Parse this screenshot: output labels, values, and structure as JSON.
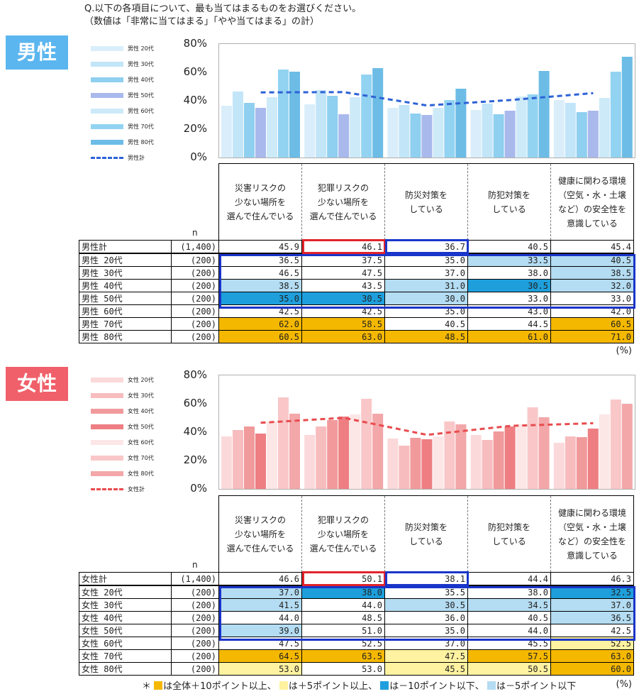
{
  "question": {
    "line1": "Q.以下の各項目について、最も当てはまるものをお選びください。",
    "line2": "（数値は「非常に当てはまる」「やや当てはまる」の計）"
  },
  "columns": [
    "災害リスクの\n少ない場所を\n選んで住んでいる",
    "犯罪リスクの\n少ない場所を\n選んで住んでいる",
    "防災対策を\nしている",
    "防犯対策を\nしている",
    "健康に関わる環境\n（空気・水・土壌\nなど）の安全性を\n意識している"
  ],
  "n_label": "n",
  "unit": "(%)",
  "colors": {
    "over10": "#f5b800",
    "over5": "#fff2a0",
    "under10": "#1e9fdc",
    "under5": "#b4dcf2",
    "male_badge": "#5bb6ef",
    "female_badge": "#f0606a"
  },
  "chart_data": [
    {
      "type": "bar",
      "title": "男性",
      "categories": [
        "災害リスクの少ない場所を選んで住んでいる",
        "犯罪リスクの少ない場所を選んで住んでいる",
        "防災対策をしている",
        "防犯対策をしている",
        "健康に関わる環境（空気・水・土壌など）の安全性を意識している"
      ],
      "ylim": [
        0,
        80
      ],
      "yticks": [
        "0%",
        "20%",
        "40%",
        "60%",
        "80%"
      ],
      "series": [
        {
          "name": "男性 20代",
          "color": "#d9eefa",
          "n": "(200)",
          "values": [
            36.5,
            37.5,
            35.0,
            33.5,
            40.5
          ]
        },
        {
          "name": "男性 30代",
          "color": "#c2e5f8",
          "n": "(200)",
          "values": [
            46.5,
            47.5,
            37.0,
            38.0,
            38.5
          ]
        },
        {
          "name": "男性 40代",
          "color": "#8fcff0",
          "n": "(200)",
          "values": [
            38.5,
            43.5,
            31.0,
            30.5,
            32.0
          ]
        },
        {
          "name": "男性 50代",
          "color": "#a9b9ec",
          "n": "(200)",
          "values": [
            35.0,
            30.5,
            30.0,
            33.0,
            33.0
          ]
        },
        {
          "name": "男性 60代",
          "color": "#cdeaf8",
          "n": "(200)",
          "values": [
            42.5,
            42.5,
            35.0,
            43.0,
            42.0
          ]
        },
        {
          "name": "男性 70代",
          "color": "#93d3f2",
          "n": "(200)",
          "values": [
            62.0,
            58.5,
            40.5,
            44.5,
            60.5
          ]
        },
        {
          "name": "男性 80代",
          "color": "#6cbce6",
          "n": "(200)",
          "values": [
            60.5,
            63.0,
            48.5,
            61.0,
            71.0
          ]
        }
      ],
      "total": {
        "name": "男性計",
        "legend_label": "男性計",
        "color": "#2d62d6",
        "n": "(1,400)",
        "values": [
          45.9,
          46.1,
          36.7,
          40.5,
          45.4
        ]
      },
      "highlights": [
        [
          "",
          "",
          "",
          "under5",
          "under5"
        ],
        [
          "",
          "",
          "",
          "",
          "under5"
        ],
        [
          "under5",
          "",
          "under5",
          "under10",
          "under5"
        ],
        [
          "under10",
          "under10",
          "under5",
          "",
          ""
        ],
        [
          "",
          "",
          "",
          "",
          ""
        ],
        [
          "over10",
          "over10",
          "",
          "",
          "over10"
        ],
        [
          "over10",
          "over10",
          "over10",
          "over10",
          "over10"
        ]
      ]
    },
    {
      "type": "bar",
      "title": "女性",
      "categories": [
        "災害リスクの少ない場所を選んで住んでいる",
        "犯罪リスクの少ない場所を選んで住んでいる",
        "防災対策をしている",
        "防犯対策をしている",
        "健康に関わる環境（空気・水・土壌など）の安全性を意識している"
      ],
      "ylim": [
        0,
        80
      ],
      "yticks": [
        "0%",
        "20%",
        "40%",
        "60%",
        "80%"
      ],
      "series": [
        {
          "name": "女性 20代",
          "color": "#fbd9da",
          "n": "(200)",
          "values": [
            37.0,
            38.0,
            35.5,
            38.0,
            32.5
          ]
        },
        {
          "name": "女性 30代",
          "color": "#f7bcbe",
          "n": "(200)",
          "values": [
            41.5,
            44.0,
            30.5,
            34.5,
            37.0
          ]
        },
        {
          "name": "女性 40代",
          "color": "#f19a9c",
          "n": "(200)",
          "values": [
            44.0,
            48.5,
            36.0,
            40.5,
            36.5
          ]
        },
        {
          "name": "女性 50代",
          "color": "#ee7e82",
          "n": "(200)",
          "values": [
            39.0,
            51.0,
            35.0,
            44.0,
            42.5
          ]
        },
        {
          "name": "女性 60代",
          "color": "#fde6e6",
          "n": "(200)",
          "values": [
            47.5,
            52.5,
            37.0,
            45.5,
            52.5
          ]
        },
        {
          "name": "女性 70代",
          "color": "#f9c7c8",
          "n": "(200)",
          "values": [
            64.5,
            63.5,
            47.5,
            57.5,
            63.0
          ]
        },
        {
          "name": "女性 80代",
          "color": "#f3a7a9",
          "n": "(200)",
          "values": [
            53.0,
            53.0,
            45.5,
            50.5,
            60.0
          ]
        }
      ],
      "total": {
        "name": "女性計",
        "legend_label": "女性計",
        "color": "#e84c4f",
        "n": "(1,400)",
        "values": [
          46.6,
          50.1,
          38.1,
          44.4,
          46.3
        ]
      },
      "highlights": [
        [
          "under5",
          "under10",
          "",
          "",
          "under10"
        ],
        [
          "under5",
          "",
          "under5",
          "under5",
          "under5"
        ],
        [
          "",
          "",
          "",
          "",
          "under5"
        ],
        [
          "under5",
          "",
          "",
          "",
          ""
        ],
        [
          "",
          "",
          "",
          "",
          "over5"
        ],
        [
          "over10",
          "over10",
          "over5",
          "over10",
          "over10"
        ],
        [
          "over5",
          "",
          "over5",
          "over5",
          "over10"
        ]
      ]
    }
  ],
  "note": {
    "prefix": "＊",
    "over10": "は全体＋10ポイント以上、",
    "over5": "は＋5ポイント以上、",
    "under10": "は－10ポイント以下、",
    "under5": "は－5ポイント以下"
  }
}
